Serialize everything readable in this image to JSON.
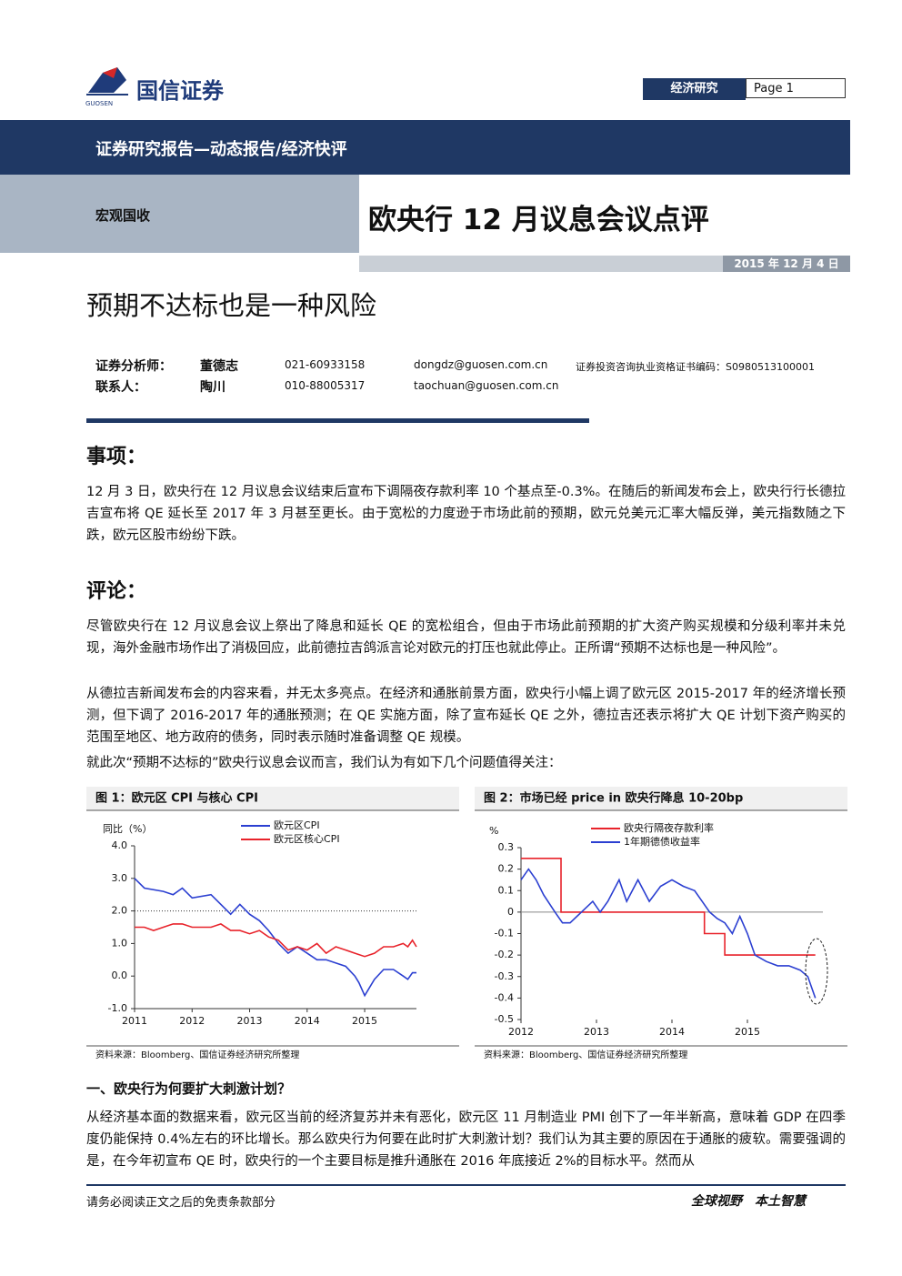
{
  "header": {
    "logo_text": "国信证券",
    "logo_sub": "GUOSEN",
    "section": "经济研究",
    "page": "Page 1",
    "banner": "证券研究报告—动态报告/经济快评",
    "category": "宏观国收",
    "title": "欧央行 12 月议息会议点评",
    "date": "2015 年 12 月 4 日",
    "subtitle": "预期不达标也是一种风险"
  },
  "analysts": {
    "rows": [
      [
        "证券分析师：",
        "董德志",
        "021-60933158",
        "dongdz@guosen.com.cn",
        "证券投资咨询执业资格证书编码：S0980513100001"
      ],
      [
        "联系人：",
        "陶川",
        "010-88005317",
        "taochuan@guosen.com.cn"
      ]
    ]
  },
  "sections": [
    {
      "heading": "事项：",
      "paragraphs": [
        "12 月 3 日，欧央行在 12 月议息会议结束后宣布下调隔夜存款利率 10 个基点至-0.3%。在随后的新闻发布会上，欧央行行长德拉吉宣布将 QE 延长至 2017 年 3 月甚至更长。由于宽松的力度逊于市场此前的预期，欧元兑美元汇率大幅反弹，美元指数随之下跌，欧元区股市纷纷下跌。"
      ]
    },
    {
      "heading": "评论：",
      "paragraphs": [
        "尽管欧央行在 12 月议息会议上祭出了降息和延长 QE 的宽松组合，但由于市场此前预期的扩大资产购买规模和分级利率并未兑现，海外金融市场作出了消极回应，此前德拉吉鸽派言论对欧元的打压也就此停止。正所谓“预期不达标也是一种风险”。",
        "从德拉吉新闻发布会的内容来看，并无太多亮点。在经济和通胀前景方面，欧央行小幅上调了欧元区 2015-2017 年的经济增长预测，但下调了 2016-2017 年的通胀预测；在 QE 实施方面，除了宣布延长 QE 之外，德拉吉还表示将扩大 QE 计划下资产购买的范围至地区、地方政府的债务，同时表示随时准备调整 QE 规模。",
        "就此次“预期不达标的”欧央行议息会议而言，我们认为有如下几个问题值得关注："
      ]
    },
    {
      "heading": "一、欧央行为何要扩大刺激计划？",
      "paragraphs": [
        "从经济基本面的数据来看，欧元区当前的经济复苏并未有恶化，欧元区 11 月制造业 PMI 创下了一年半新高，意味着 GDP 在四季度仍能保持 0.4%左右的环比增长。那么欧央行为何要在此时扩大刺激计划？我们认为其主要的原因在于通胀的疲软。需要强调的是，在今年初宣布 QE 时，欧央行的一个主要目标是推升通胀在 2016 年底接近 2%的目标水平。然而从"
      ]
    }
  ],
  "footer": {
    "left": "请务必阅读正文之后的免责条款部分",
    "right": "全球视野　本土智慧"
  },
  "chart_data": [
    {
      "type": "line",
      "title": "图 1：欧元区 CPI 与核心 CPI",
      "y_label": "同比（%）",
      "source": "资料来源：Bloomberg、国信证券经济研究所整理",
      "xlim": [
        2011,
        2015.9
      ],
      "xticks": [
        2011,
        2012,
        2013,
        2014,
        2015
      ],
      "ylim": [
        -1,
        4
      ],
      "yticks": [
        {
          "value": 4,
          "label": "4.0"
        },
        {
          "value": 3,
          "label": "3.0"
        },
        {
          "value": 2,
          "label": "2.0"
        },
        {
          "value": 1,
          "label": "1.0"
        },
        {
          "value": 0,
          "label": "0.0"
        },
        {
          "value": -1,
          "label": "-1.0"
        }
      ],
      "ref_line": 2,
      "series": [
        {
          "name": "欧元区CPI",
          "color": "#2b3fd1",
          "x": [
            2011,
            2011.17,
            2011.5,
            2011.67,
            2011.83,
            2012,
            2012.33,
            2012.5,
            2012.67,
            2012.83,
            2013,
            2013.17,
            2013.33,
            2013.5,
            2013.67,
            2013.83,
            2014,
            2014.17,
            2014.33,
            2014.5,
            2014.67,
            2014.83,
            2014.9,
            2015,
            2015.17,
            2015.33,
            2015.5,
            2015.67,
            2015.75,
            2015.83,
            2015.9
          ],
          "values": [
            3.0,
            2.7,
            2.6,
            2.5,
            2.7,
            2.4,
            2.5,
            2.2,
            1.9,
            2.2,
            1.9,
            1.7,
            1.4,
            1.0,
            0.7,
            0.9,
            0.7,
            0.5,
            0.5,
            0.4,
            0.3,
            0.0,
            -0.2,
            -0.6,
            -0.1,
            0.2,
            0.2,
            0.0,
            -0.1,
            0.1,
            0.1
          ]
        },
        {
          "name": "欧元区核心CPI",
          "color": "#e8232b",
          "x": [
            2011,
            2011.17,
            2011.33,
            2011.5,
            2011.67,
            2011.83,
            2012,
            2012.33,
            2012.5,
            2012.67,
            2012.83,
            2013,
            2013.17,
            2013.33,
            2013.5,
            2013.67,
            2013.83,
            2014,
            2014.17,
            2014.33,
            2014.5,
            2014.67,
            2014.83,
            2015,
            2015.17,
            2015.33,
            2015.5,
            2015.67,
            2015.75,
            2015.83,
            2015.9
          ],
          "values": [
            1.5,
            1.5,
            1.4,
            1.5,
            1.6,
            1.6,
            1.5,
            1.5,
            1.6,
            1.4,
            1.4,
            1.3,
            1.4,
            1.2,
            1.1,
            0.8,
            0.9,
            0.8,
            1.0,
            0.7,
            0.9,
            0.8,
            0.7,
            0.6,
            0.7,
            0.9,
            0.9,
            1.0,
            0.9,
            1.1,
            0.9
          ]
        }
      ]
    },
    {
      "type": "line",
      "title": "图 2：市场已经 price in 欧央行降息 10-20bp",
      "y_label": "%",
      "source": "资料来源：Bloomberg、国信证券经济研究所整理",
      "xlim": [
        2012,
        2016
      ],
      "xticks": [
        2012,
        2013,
        2014,
        2015
      ],
      "ylim": [
        -0.5,
        0.3
      ],
      "yticks": [
        0.3,
        0.2,
        0.1,
        0,
        -0.1,
        -0.2,
        -0.3,
        -0.4,
        -0.5
      ],
      "ref_line": 0,
      "series": [
        {
          "name": "欧央行隔夜存款利率",
          "color": "#e8232b",
          "x": [
            2012,
            2012.53,
            2012.53,
            2014.43,
            2014.43,
            2014.7,
            2014.7,
            2015.9
          ],
          "values": [
            0.25,
            0.25,
            0,
            0,
            -0.1,
            -0.1,
            -0.2,
            -0.2
          ]
        },
        {
          "name": "1年期德债收益率",
          "color": "#2b3fd1",
          "x": [
            2012,
            2012.1,
            2012.2,
            2012.3,
            2012.45,
            2012.55,
            2012.65,
            2012.8,
            2012.95,
            2013.05,
            2013.15,
            2013.3,
            2013.4,
            2013.55,
            2013.7,
            2013.85,
            2014,
            2014.15,
            2014.3,
            2014.4,
            2014.5,
            2014.6,
            2014.7,
            2014.8,
            2014.9,
            2015,
            2015.1,
            2015.25,
            2015.4,
            2015.55,
            2015.7,
            2015.8,
            2015.9
          ],
          "values": [
            0.15,
            0.2,
            0.15,
            0.08,
            0.0,
            -0.05,
            -0.05,
            0.0,
            0.05,
            0.0,
            0.05,
            0.15,
            0.05,
            0.15,
            0.05,
            0.12,
            0.15,
            0.12,
            0.1,
            0.05,
            0.0,
            -0.03,
            -0.05,
            -0.1,
            -0.02,
            -0.1,
            -0.2,
            -0.23,
            -0.25,
            -0.25,
            -0.27,
            -0.3,
            -0.4
          ]
        }
      ]
    }
  ]
}
